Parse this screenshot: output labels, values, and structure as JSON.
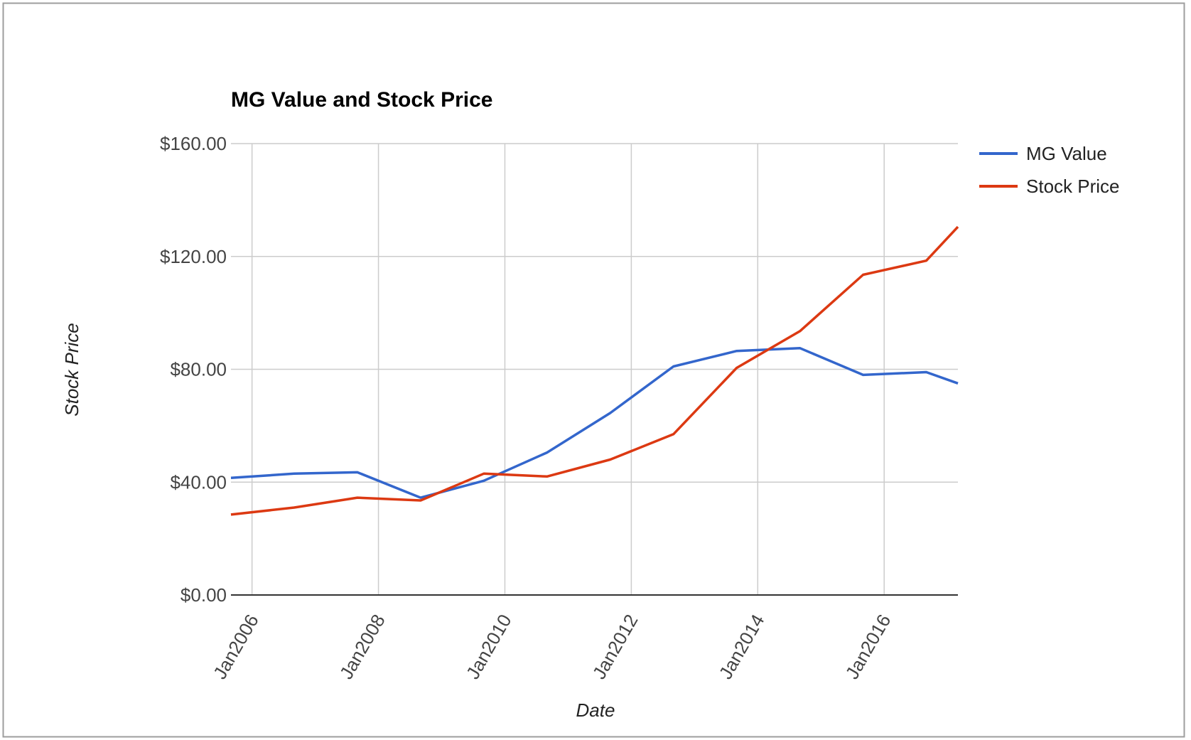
{
  "chart_data": {
    "type": "line",
    "title": "MG Value and Stock Price",
    "xlabel": "Date",
    "ylabel": "Stock Price",
    "x": [
      "2005-09",
      "2006-09",
      "2007-09",
      "2008-09",
      "2009-09",
      "2010-09",
      "2011-09",
      "2012-09",
      "2013-09",
      "2014-09",
      "2015-09",
      "2016-09",
      "2017-03"
    ],
    "x_ticks": [
      {
        "date": "2006-01",
        "label": "Jan2006"
      },
      {
        "date": "2008-01",
        "label": "Jan2008"
      },
      {
        "date": "2010-01",
        "label": "Jan2010"
      },
      {
        "date": "2012-01",
        "label": "Jan2012"
      },
      {
        "date": "2014-01",
        "label": "Jan2014"
      },
      {
        "date": "2016-01",
        "label": "Jan2016"
      }
    ],
    "y_ticks": [
      {
        "value": 0,
        "label": "$0.00"
      },
      {
        "value": 40,
        "label": "$40.00"
      },
      {
        "value": 80,
        "label": "$80.00"
      },
      {
        "value": 120,
        "label": "$120.00"
      },
      {
        "value": 160,
        "label": "$160.00"
      }
    ],
    "ylim": [
      0,
      160
    ],
    "grid": true,
    "legend_position": "right",
    "series": [
      {
        "name": "MG Value",
        "color": "#3366cc",
        "values": [
          41.5,
          43.0,
          43.5,
          34.5,
          40.5,
          50.5,
          64.5,
          81.0,
          86.5,
          87.5,
          78.0,
          79.0,
          75.0
        ]
      },
      {
        "name": "Stock Price",
        "color": "#dc3912",
        "values": [
          28.5,
          31.0,
          34.5,
          33.5,
          43.0,
          42.0,
          48.0,
          57.0,
          80.5,
          93.5,
          113.5,
          118.5,
          130.5
        ]
      }
    ]
  }
}
